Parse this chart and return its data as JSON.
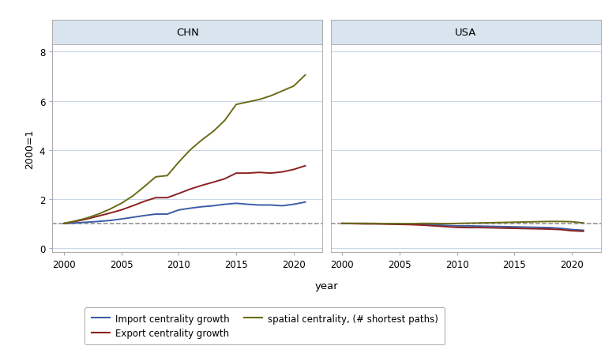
{
  "years": [
    2000,
    2001,
    2002,
    2003,
    2004,
    2005,
    2006,
    2007,
    2008,
    2009,
    2010,
    2011,
    2012,
    2013,
    2014,
    2015,
    2016,
    2017,
    2018,
    2019,
    2020,
    2021
  ],
  "CHN": {
    "import_centrality": [
      1.0,
      1.02,
      1.05,
      1.08,
      1.12,
      1.18,
      1.25,
      1.32,
      1.38,
      1.38,
      1.55,
      1.62,
      1.68,
      1.72,
      1.78,
      1.82,
      1.78,
      1.75,
      1.75,
      1.72,
      1.78,
      1.87
    ],
    "export_centrality": [
      1.0,
      1.08,
      1.18,
      1.3,
      1.42,
      1.55,
      1.72,
      1.9,
      2.05,
      2.05,
      2.22,
      2.4,
      2.55,
      2.68,
      2.82,
      3.05,
      3.05,
      3.08,
      3.05,
      3.1,
      3.2,
      3.35
    ],
    "spatial_centrality": [
      1.0,
      1.1,
      1.22,
      1.38,
      1.58,
      1.82,
      2.12,
      2.5,
      2.9,
      2.95,
      3.5,
      4.0,
      4.4,
      4.75,
      5.2,
      5.85,
      5.95,
      6.05,
      6.2,
      6.4,
      6.6,
      7.05
    ]
  },
  "USA": {
    "import_centrality": [
      1.0,
      1.0,
      1.0,
      0.99,
      0.99,
      0.98,
      0.97,
      0.96,
      0.94,
      0.92,
      0.9,
      0.9,
      0.89,
      0.88,
      0.87,
      0.86,
      0.85,
      0.84,
      0.83,
      0.8,
      0.75,
      0.72
    ],
    "export_centrality": [
      1.0,
      0.99,
      0.98,
      0.98,
      0.97,
      0.96,
      0.95,
      0.93,
      0.9,
      0.87,
      0.84,
      0.83,
      0.83,
      0.82,
      0.81,
      0.8,
      0.79,
      0.78,
      0.77,
      0.75,
      0.7,
      0.68
    ],
    "spatial_centrality": [
      1.0,
      1.0,
      1.0,
      1.0,
      0.99,
      0.99,
      0.99,
      1.0,
      1.0,
      0.99,
      1.0,
      1.01,
      1.02,
      1.03,
      1.04,
      1.05,
      1.06,
      1.07,
      1.08,
      1.08,
      1.07,
      1.02
    ]
  },
  "colors": {
    "import": "#3b5ea6",
    "export": "#8b2020",
    "spatial": "#6b6b18"
  },
  "panel_bg": "#d9e4ef",
  "plot_bg": "#ffffff",
  "grid_color": "#c8d8e8",
  "ylim": [
    -0.18,
    8.3
  ],
  "yticks": [
    0,
    2,
    4,
    6,
    8
  ],
  "xticks": [
    2000,
    2005,
    2010,
    2015,
    2020
  ],
  "xlim": [
    1999.0,
    2022.5
  ],
  "xlabel": "year",
  "ylabel": "2000=1",
  "title_CHN": "CHN",
  "title_USA": "USA",
  "legend_labels": {
    "import": "Import centrality growth",
    "export": "Export centrality growth",
    "spatial": "spatial centrality, (# shortest paths)"
  },
  "dashed_ref": 1.0,
  "linewidth": 1.4
}
